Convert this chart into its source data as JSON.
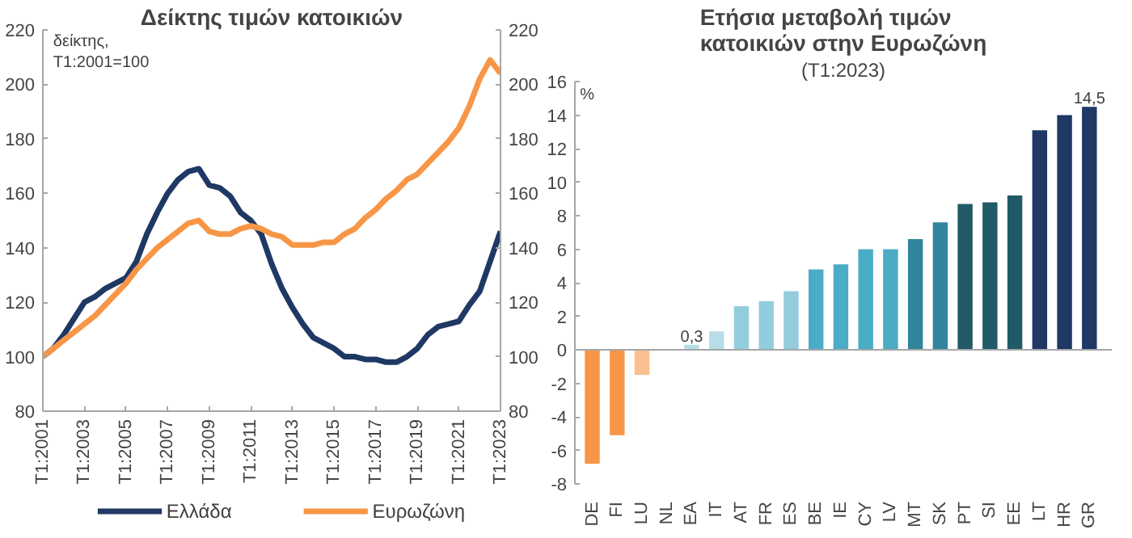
{
  "chart_data": [
    {
      "type": "line",
      "title": "Δείκτης τιμών κατοικιών",
      "annotations": [
        "δείκτης,\nT1:2001=100"
      ],
      "categories": [
        "T1:2001",
        null,
        null,
        null,
        "T1:2003",
        null,
        null,
        null,
        "T1:2005",
        null,
        null,
        null,
        "T1:2007",
        null,
        null,
        null,
        "T1:2009",
        null,
        null,
        null,
        "T1:2011",
        null,
        null,
        null,
        "T1:2013",
        null,
        null,
        null,
        "T1:2015",
        null,
        null,
        null,
        "T1:2017",
        null,
        null,
        null,
        "T1:2019",
        null,
        null,
        null,
        "T1:2021",
        null,
        null,
        null,
        "T1:2023"
      ],
      "ylim": [
        80,
        220
      ],
      "yticks": [
        80,
        100,
        120,
        140,
        160,
        180,
        200,
        220
      ],
      "y2lim": [
        80,
        220
      ],
      "y2ticks": [
        80,
        100,
        120,
        140,
        160,
        180,
        200,
        220
      ],
      "grid": false,
      "legend": "bottom",
      "series": [
        {
          "name": "Ελλάδα",
          "color": "#1f3864",
          "values": [
            100,
            103,
            108,
            114,
            120,
            122,
            125,
            127,
            129,
            135,
            145,
            153,
            160,
            165,
            168,
            169,
            163,
            162,
            159,
            153,
            150,
            145,
            134,
            125,
            118,
            112,
            107,
            105,
            103,
            100,
            100,
            99,
            99,
            98,
            98,
            100,
            103,
            108,
            111,
            112,
            113,
            119,
            124,
            135,
            146
          ]
        },
        {
          "name": "Ευρωζώνη",
          "color": "#f79646",
          "values": [
            100,
            103,
            106,
            109,
            112,
            115,
            119,
            123,
            127,
            132,
            136,
            140,
            143,
            146,
            149,
            150,
            146,
            145,
            145,
            147,
            148,
            147,
            145,
            144,
            141,
            141,
            141,
            142,
            142,
            145,
            147,
            151,
            154,
            158,
            161,
            165,
            167,
            171,
            175,
            179,
            184,
            192,
            202,
            209,
            204
          ]
        }
      ]
    },
    {
      "type": "bar",
      "title": "Ετήσια μεταβολή τιμών\nκατοικιών στην Ευρωζώνη",
      "subtitle": "(T1:2023)",
      "ylabel": "%",
      "categories": [
        "DE",
        "FI",
        "LU",
        "NL",
        "EA",
        "IT",
        "AT",
        "FR",
        "ES",
        "BE",
        "IE",
        "CY",
        "LV",
        "MT",
        "SK",
        "PT",
        "SI",
        "EE",
        "LT",
        "HR",
        "GR"
      ],
      "values": [
        -6.8,
        -5.1,
        -1.5,
        0,
        0.3,
        1.1,
        2.6,
        2.9,
        3.5,
        4.8,
        5.1,
        6.0,
        6.0,
        6.6,
        7.6,
        8.7,
        8.8,
        9.2,
        13.1,
        14.0,
        14.5
      ],
      "colors": [
        "#f79646",
        "#f79646",
        "#fac090",
        "#fac090",
        "#b7dee8",
        "#b7dee8",
        "#93cddd",
        "#93cddd",
        "#93cddd",
        "#4bacc6",
        "#4bacc6",
        "#4bacc6",
        "#4bacc6",
        "#31849b",
        "#31849b",
        "#215967",
        "#215967",
        "#215967",
        "#1f3864",
        "#1f3864",
        "#1f3864"
      ],
      "value_labels": [
        null,
        null,
        null,
        null,
        "0,3",
        null,
        null,
        null,
        null,
        null,
        null,
        null,
        null,
        null,
        null,
        null,
        null,
        null,
        null,
        null,
        "14,5"
      ],
      "ylim": [
        -8,
        16
      ],
      "yticks": [
        -8,
        -6,
        -4,
        -2,
        0,
        2,
        4,
        6,
        8,
        10,
        12,
        14,
        16
      ],
      "grid": false,
      "ref_lines": [
        {
          "axis": "y",
          "value": 0,
          "color": "#a6a6a6"
        }
      ]
    }
  ]
}
